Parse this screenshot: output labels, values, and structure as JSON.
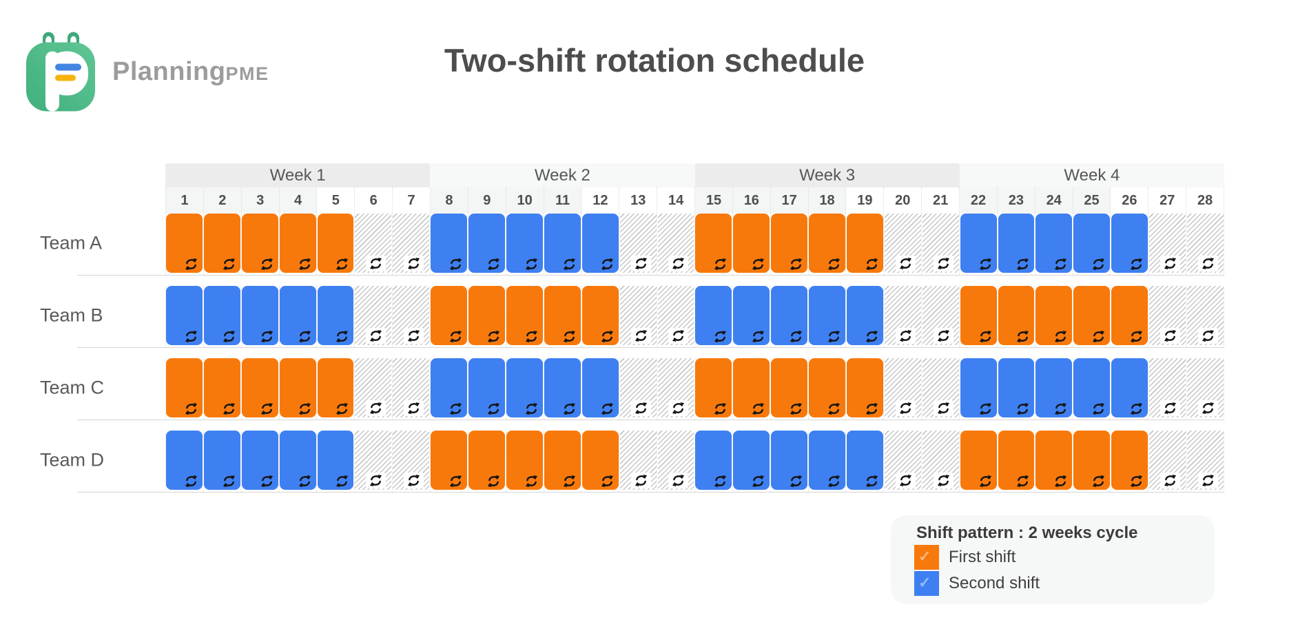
{
  "brand": {
    "name": "Planning",
    "suffix": "PME"
  },
  "title": "Two-shift rotation schedule",
  "legend": {
    "title": "Shift pattern : 2 weeks cycle",
    "items": [
      {
        "shift": "first"
      },
      {
        "shift": "second"
      }
    ]
  },
  "icons": {
    "cell_icon": "rotate-cycle-icon",
    "swatch_check": "✓",
    "logo": "planningpme-calendar-logo"
  },
  "colors": {
    "first_shift": "#F8790B",
    "second_shift": "#3E80F1",
    "week_header_odd": "#ECECEC",
    "week_header_even": "#F7F8F8",
    "hatch_stripe": "#C6C6C6",
    "title_text": "#4D4D4D",
    "brand_text": "#9C9C9C",
    "logo_green": "#54BB8B",
    "logo_blue_bar": "#4285E2",
    "logo_yellow_bar": "#F5B40D"
  },
  "chart_data": {
    "type": "table",
    "title": "Two-shift rotation schedule",
    "weeks": [
      "Week 1",
      "Week 2",
      "Week 3",
      "Week 4"
    ],
    "days": [
      1,
      2,
      3,
      4,
      5,
      6,
      7,
      8,
      9,
      10,
      11,
      12,
      13,
      14,
      15,
      16,
      17,
      18,
      19,
      20,
      21,
      22,
      23,
      24,
      25,
      26,
      27,
      28
    ],
    "weekend_days": [
      6,
      7,
      13,
      14,
      20,
      21,
      27,
      28
    ],
    "work_days_per_week": 5,
    "teams": [
      {
        "name": "Team A",
        "weekly_shifts": [
          "first",
          "second",
          "first",
          "second"
        ]
      },
      {
        "name": "Team B",
        "weekly_shifts": [
          "second",
          "first",
          "second",
          "first"
        ]
      },
      {
        "name": "Team C",
        "weekly_shifts": [
          "first",
          "second",
          "first",
          "second"
        ]
      },
      {
        "name": "Team D",
        "weekly_shifts": [
          "second",
          "first",
          "second",
          "first"
        ]
      }
    ],
    "shifts": {
      "first": {
        "label": "First shift",
        "color": "#F8790B"
      },
      "second": {
        "label": "Second shift",
        "color": "#3E80F1"
      }
    },
    "legend_position": "bottom-right",
    "cycle": "2 weeks"
  }
}
